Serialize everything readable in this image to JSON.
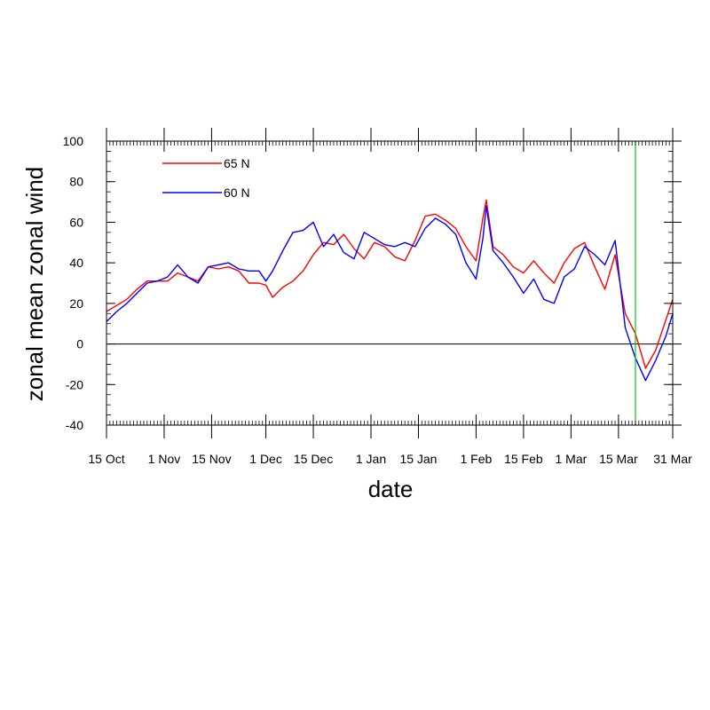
{
  "chart_data": {
    "type": "line",
    "title": "",
    "xlabel": "date",
    "ylabel": "zonal mean zonal wind",
    "xlim": [
      "2000-10-15",
      "2001-03-31"
    ],
    "ylim": [
      -40,
      100
    ],
    "x_ticks": [
      {
        "date": "2000-10-15",
        "label": "15 Oct"
      },
      {
        "date": "2000-11-01",
        "label": "1 Nov"
      },
      {
        "date": "2000-11-15",
        "label": "15 Nov"
      },
      {
        "date": "2000-12-01",
        "label": "1 Dec"
      },
      {
        "date": "2000-12-15",
        "label": "15 Dec"
      },
      {
        "date": "2001-01-01",
        "label": "1 Jan"
      },
      {
        "date": "2001-01-15",
        "label": "15 Jan"
      },
      {
        "date": "2001-02-01",
        "label": "1 Feb"
      },
      {
        "date": "2001-02-15",
        "label": "15 Feb"
      },
      {
        "date": "2001-03-01",
        "label": "1 Mar"
      },
      {
        "date": "2001-03-15",
        "label": "15 Mar"
      },
      {
        "date": "2001-03-31",
        "label": "31 Mar"
      }
    ],
    "y_ticks": [
      100,
      80,
      60,
      40,
      20,
      0,
      -20,
      -40
    ],
    "zero_line": true,
    "vertical_marker": {
      "date": "2001-03-20",
      "color": "#00cc00"
    },
    "legend": {
      "placement": "top-left"
    },
    "series": [
      {
        "name": "65 N",
        "color": "#ff0000",
        "points": [
          [
            "2000-10-15",
            16
          ],
          [
            "2000-10-18",
            19
          ],
          [
            "2000-10-21",
            22
          ],
          [
            "2000-10-24",
            27
          ],
          [
            "2000-10-27",
            31
          ],
          [
            "2000-10-30",
            31
          ],
          [
            "2000-11-02",
            31
          ],
          [
            "2000-11-05",
            35
          ],
          [
            "2000-11-08",
            33
          ],
          [
            "2000-11-11",
            31
          ],
          [
            "2000-11-14",
            38
          ],
          [
            "2000-11-17",
            37
          ],
          [
            "2000-11-20",
            38
          ],
          [
            "2000-11-23",
            36
          ],
          [
            "2000-11-26",
            30
          ],
          [
            "2000-11-29",
            30
          ],
          [
            "2000-12-01",
            29
          ],
          [
            "2000-12-03",
            23
          ],
          [
            "2000-12-06",
            28
          ],
          [
            "2000-12-09",
            31
          ],
          [
            "2000-12-12",
            36
          ],
          [
            "2000-12-15",
            44
          ],
          [
            "2000-12-18",
            50
          ],
          [
            "2000-12-21",
            49
          ],
          [
            "2000-12-24",
            54
          ],
          [
            "2000-12-27",
            47
          ],
          [
            "2000-12-30",
            42
          ],
          [
            "2001-01-02",
            50
          ],
          [
            "2001-01-05",
            48
          ],
          [
            "2001-01-08",
            43
          ],
          [
            "2001-01-11",
            41
          ],
          [
            "2001-01-14",
            51
          ],
          [
            "2001-01-17",
            63
          ],
          [
            "2001-01-20",
            64
          ],
          [
            "2001-01-23",
            61
          ],
          [
            "2001-01-26",
            57
          ],
          [
            "2001-01-29",
            48
          ],
          [
            "2001-02-01",
            41
          ],
          [
            "2001-02-03",
            62
          ],
          [
            "2001-02-04",
            71
          ],
          [
            "2001-02-06",
            48
          ],
          [
            "2001-02-09",
            44
          ],
          [
            "2001-02-12",
            38
          ],
          [
            "2001-02-15",
            35
          ],
          [
            "2001-02-18",
            41
          ],
          [
            "2001-02-21",
            35
          ],
          [
            "2001-02-24",
            30
          ],
          [
            "2001-02-27",
            40
          ],
          [
            "2001-03-02",
            47
          ],
          [
            "2001-03-05",
            50
          ],
          [
            "2001-03-08",
            38
          ],
          [
            "2001-03-11",
            27
          ],
          [
            "2001-03-14",
            44
          ],
          [
            "2001-03-17",
            15
          ],
          [
            "2001-03-20",
            5
          ],
          [
            "2001-03-23",
            -12
          ],
          [
            "2001-03-26",
            -3
          ],
          [
            "2001-03-29",
            12
          ],
          [
            "2001-03-31",
            22
          ]
        ]
      },
      {
        "name": "60 N",
        "color": "#0000ff",
        "points": [
          [
            "2000-10-15",
            11
          ],
          [
            "2000-10-18",
            16
          ],
          [
            "2000-10-21",
            20
          ],
          [
            "2000-10-24",
            25
          ],
          [
            "2000-10-27",
            30
          ],
          [
            "2000-10-30",
            31
          ],
          [
            "2000-11-02",
            33
          ],
          [
            "2000-11-05",
            39
          ],
          [
            "2000-11-08",
            33
          ],
          [
            "2000-11-11",
            30
          ],
          [
            "2000-11-14",
            38
          ],
          [
            "2000-11-17",
            39
          ],
          [
            "2000-11-20",
            40
          ],
          [
            "2000-11-23",
            37
          ],
          [
            "2000-11-26",
            36
          ],
          [
            "2000-11-29",
            36
          ],
          [
            "2000-12-01",
            31
          ],
          [
            "2000-12-03",
            36
          ],
          [
            "2000-12-06",
            46
          ],
          [
            "2000-12-09",
            55
          ],
          [
            "2000-12-12",
            56
          ],
          [
            "2000-12-15",
            60
          ],
          [
            "2000-12-18",
            48
          ],
          [
            "2000-12-21",
            54
          ],
          [
            "2000-12-24",
            45
          ],
          [
            "2000-12-27",
            42
          ],
          [
            "2000-12-30",
            55
          ],
          [
            "2001-01-02",
            52
          ],
          [
            "2001-01-05",
            49
          ],
          [
            "2001-01-08",
            48
          ],
          [
            "2001-01-11",
            50
          ],
          [
            "2001-01-14",
            48
          ],
          [
            "2001-01-17",
            57
          ],
          [
            "2001-01-20",
            62
          ],
          [
            "2001-01-23",
            59
          ],
          [
            "2001-01-26",
            54
          ],
          [
            "2001-01-29",
            40
          ],
          [
            "2001-02-01",
            32
          ],
          [
            "2001-02-03",
            52
          ],
          [
            "2001-02-04",
            68
          ],
          [
            "2001-02-06",
            46
          ],
          [
            "2001-02-09",
            40
          ],
          [
            "2001-02-12",
            33
          ],
          [
            "2001-02-15",
            25
          ],
          [
            "2001-02-18",
            32
          ],
          [
            "2001-02-21",
            22
          ],
          [
            "2001-02-24",
            20
          ],
          [
            "2001-02-27",
            33
          ],
          [
            "2001-03-02",
            37
          ],
          [
            "2001-03-05",
            48
          ],
          [
            "2001-03-08",
            44
          ],
          [
            "2001-03-11",
            39
          ],
          [
            "2001-03-14",
            51
          ],
          [
            "2001-03-17",
            8
          ],
          [
            "2001-03-20",
            -7
          ],
          [
            "2001-03-23",
            -18
          ],
          [
            "2001-03-26",
            -8
          ],
          [
            "2001-03-29",
            4
          ],
          [
            "2001-03-31",
            15
          ]
        ]
      }
    ]
  }
}
